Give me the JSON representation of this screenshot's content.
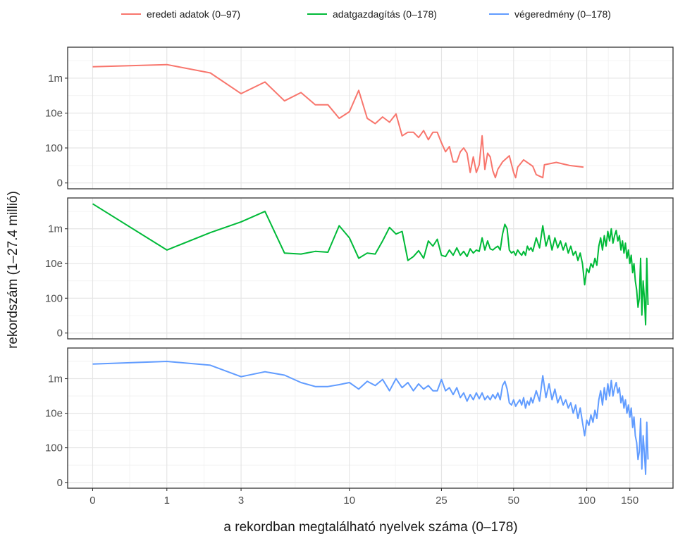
{
  "chart_data": {
    "type": "line",
    "xlabel": "a rekordban megtalálható nyelvek száma (0–178)",
    "ylabel": "rekordszám (1–27.4 millió)",
    "x_scale": "log1p",
    "y_scale": "log1p",
    "x_ticks": [
      {
        "value": 0,
        "label": "0"
      },
      {
        "value": 1,
        "label": "1"
      },
      {
        "value": 3,
        "label": "3"
      },
      {
        "value": 10,
        "label": "10"
      },
      {
        "value": 25,
        "label": "25"
      },
      {
        "value": 50,
        "label": "50"
      },
      {
        "value": 100,
        "label": "100"
      },
      {
        "value": 150,
        "label": "150"
      }
    ],
    "y_ticks": [
      {
        "value": 0,
        "label": "0"
      },
      {
        "value": 100,
        "label": "100"
      },
      {
        "value": 10000,
        "label": "10e"
      },
      {
        "value": 1000000,
        "label": "1m"
      }
    ],
    "xlim": [
      0,
      178
    ],
    "ylim": [
      0,
      27400000
    ],
    "legend_position": "top",
    "grid": true,
    "series": [
      {
        "name": "eredeti adatok (0–97)",
        "color": "#F8766D",
        "points": [
          [
            0,
            4500000
          ],
          [
            1,
            6000000
          ],
          [
            2,
            2000000
          ],
          [
            3,
            130000
          ],
          [
            4,
            600000
          ],
          [
            5,
            50000
          ],
          [
            6,
            150000
          ],
          [
            7,
            30000
          ],
          [
            8,
            30000
          ],
          [
            9,
            5000
          ],
          [
            10,
            12000
          ],
          [
            11,
            200000
          ],
          [
            12,
            5000
          ],
          [
            13,
            2500
          ],
          [
            14,
            6000
          ],
          [
            15,
            3000
          ],
          [
            16,
            9000
          ],
          [
            17,
            500
          ],
          [
            18,
            800
          ],
          [
            19,
            800
          ],
          [
            20,
            400
          ],
          [
            21,
            1000
          ],
          [
            22,
            300
          ],
          [
            23,
            800
          ],
          [
            24,
            800
          ],
          [
            25,
            200
          ],
          [
            26,
            60
          ],
          [
            27,
            120
          ],
          [
            28,
            15
          ],
          [
            29,
            15
          ],
          [
            30,
            60
          ],
          [
            31,
            100
          ],
          [
            32,
            50
          ],
          [
            33,
            3
          ],
          [
            34,
            30
          ],
          [
            35,
            3
          ],
          [
            36,
            10
          ],
          [
            37,
            500
          ],
          [
            38,
            5
          ],
          [
            39,
            50
          ],
          [
            40,
            30
          ],
          [
            41,
            4
          ],
          [
            42,
            1
          ],
          [
            43,
            5
          ],
          [
            45,
            15
          ],
          [
            48,
            35
          ],
          [
            50,
            3
          ],
          [
            51,
            1
          ],
          [
            52,
            7
          ],
          [
            55,
            20
          ],
          [
            60,
            8
          ],
          [
            62,
            2
          ],
          [
            66,
            1
          ],
          [
            67,
            10
          ],
          [
            75,
            14
          ],
          [
            85,
            9
          ],
          [
            97,
            7
          ]
        ]
      },
      {
        "name": "adatgazdagítás (0–178)",
        "color": "#00BA38",
        "points": [
          [
            0,
            27400000
          ],
          [
            1,
            60000
          ],
          [
            2,
            600000
          ],
          [
            3,
            2500000
          ],
          [
            4,
            10000000
          ],
          [
            5,
            40000
          ],
          [
            6,
            35000
          ],
          [
            7,
            50000
          ],
          [
            8,
            45000
          ],
          [
            9,
            1500000
          ],
          [
            10,
            300000
          ],
          [
            11,
            20000
          ],
          [
            12,
            40000
          ],
          [
            13,
            35000
          ],
          [
            14,
            200000
          ],
          [
            15,
            1200000
          ],
          [
            16,
            500000
          ],
          [
            17,
            700000
          ],
          [
            18,
            15000
          ],
          [
            19,
            25000
          ],
          [
            20,
            55000
          ],
          [
            21,
            20000
          ],
          [
            22,
            200000
          ],
          [
            23,
            100000
          ],
          [
            24,
            250000
          ],
          [
            25,
            30000
          ],
          [
            26,
            25000
          ],
          [
            27,
            60000
          ],
          [
            28,
            30000
          ],
          [
            29,
            80000
          ],
          [
            30,
            30000
          ],
          [
            31,
            50000
          ],
          [
            32,
            25000
          ],
          [
            33,
            70000
          ],
          [
            34,
            40000
          ],
          [
            35,
            60000
          ],
          [
            36,
            50000
          ],
          [
            37,
            300000
          ],
          [
            38,
            60000
          ],
          [
            39,
            200000
          ],
          [
            40,
            70000
          ],
          [
            41,
            60000
          ],
          [
            42,
            80000
          ],
          [
            43,
            100000
          ],
          [
            44,
            60000
          ],
          [
            45,
            500000
          ],
          [
            46,
            1800000
          ],
          [
            47,
            1000000
          ],
          [
            48,
            60000
          ],
          [
            49,
            40000
          ],
          [
            50,
            50000
          ],
          [
            51,
            30000
          ],
          [
            52,
            60000
          ],
          [
            53,
            40000
          ],
          [
            54,
            30000
          ],
          [
            55,
            50000
          ],
          [
            56,
            30000
          ],
          [
            57,
            100000
          ],
          [
            58,
            60000
          ],
          [
            59,
            80000
          ],
          [
            60,
            50000
          ],
          [
            62,
            300000
          ],
          [
            64,
            80000
          ],
          [
            66,
            1500000
          ],
          [
            68,
            100000
          ],
          [
            70,
            400000
          ],
          [
            72,
            60000
          ],
          [
            74,
            300000
          ],
          [
            76,
            80000
          ],
          [
            78,
            200000
          ],
          [
            80,
            60000
          ],
          [
            82,
            150000
          ],
          [
            84,
            40000
          ],
          [
            86,
            100000
          ],
          [
            88,
            30000
          ],
          [
            90,
            50000
          ],
          [
            92,
            15000
          ],
          [
            94,
            40000
          ],
          [
            96,
            10000
          ],
          [
            98,
            600
          ],
          [
            100,
            5000
          ],
          [
            102,
            3000
          ],
          [
            104,
            10000
          ],
          [
            106,
            6000
          ],
          [
            108,
            20000
          ],
          [
            110,
            8000
          ],
          [
            112,
            100000
          ],
          [
            114,
            300000
          ],
          [
            116,
            60000
          ],
          [
            118,
            400000
          ],
          [
            120,
            100000
          ],
          [
            122,
            700000
          ],
          [
            124,
            200000
          ],
          [
            126,
            1000000
          ],
          [
            128,
            150000
          ],
          [
            130,
            400000
          ],
          [
            132,
            800000
          ],
          [
            134,
            200000
          ],
          [
            136,
            400000
          ],
          [
            138,
            60000
          ],
          [
            140,
            200000
          ],
          [
            142,
            40000
          ],
          [
            144,
            150000
          ],
          [
            146,
            20000
          ],
          [
            148,
            60000
          ],
          [
            150,
            10000
          ],
          [
            152,
            30000
          ],
          [
            154,
            3000
          ],
          [
            156,
            10000
          ],
          [
            158,
            1000
          ],
          [
            160,
            300
          ],
          [
            162,
            30
          ],
          [
            164,
            100
          ],
          [
            166,
            20000
          ],
          [
            168,
            10
          ],
          [
            170,
            1000
          ],
          [
            172,
            100
          ],
          [
            174,
            2
          ],
          [
            176,
            20000
          ],
          [
            178,
            40
          ]
        ]
      },
      {
        "name": "végeredmény (0–178)",
        "color": "#619CFF",
        "points": [
          [
            0,
            7000000
          ],
          [
            1,
            10000000
          ],
          [
            2,
            6000000
          ],
          [
            3,
            1300000
          ],
          [
            4,
            2500000
          ],
          [
            5,
            1600000
          ],
          [
            6,
            600000
          ],
          [
            7,
            350000
          ],
          [
            8,
            350000
          ],
          [
            9,
            450000
          ],
          [
            10,
            600000
          ],
          [
            11,
            250000
          ],
          [
            12,
            700000
          ],
          [
            13,
            400000
          ],
          [
            14,
            900000
          ],
          [
            15,
            200000
          ],
          [
            16,
            1000000
          ],
          [
            17,
            300000
          ],
          [
            18,
            600000
          ],
          [
            19,
            200000
          ],
          [
            20,
            500000
          ],
          [
            21,
            250000
          ],
          [
            22,
            400000
          ],
          [
            23,
            200000
          ],
          [
            24,
            200000
          ],
          [
            25,
            900000
          ],
          [
            26,
            200000
          ],
          [
            27,
            300000
          ],
          [
            28,
            120000
          ],
          [
            29,
            300000
          ],
          [
            30,
            80000
          ],
          [
            31,
            150000
          ],
          [
            32,
            50000
          ],
          [
            33,
            120000
          ],
          [
            34,
            60000
          ],
          [
            35,
            150000
          ],
          [
            36,
            70000
          ],
          [
            37,
            150000
          ],
          [
            38,
            60000
          ],
          [
            39,
            100000
          ],
          [
            40,
            60000
          ],
          [
            41,
            120000
          ],
          [
            42,
            70000
          ],
          [
            43,
            150000
          ],
          [
            44,
            60000
          ],
          [
            45,
            400000
          ],
          [
            46,
            700000
          ],
          [
            47,
            250000
          ],
          [
            48,
            40000
          ],
          [
            49,
            30000
          ],
          [
            50,
            60000
          ],
          [
            51,
            25000
          ],
          [
            52,
            40000
          ],
          [
            53,
            60000
          ],
          [
            54,
            30000
          ],
          [
            55,
            80000
          ],
          [
            56,
            20000
          ],
          [
            57,
            50000
          ],
          [
            58,
            30000
          ],
          [
            59,
            80000
          ],
          [
            60,
            40000
          ],
          [
            62,
            200000
          ],
          [
            64,
            50000
          ],
          [
            66,
            1500000
          ],
          [
            68,
            80000
          ],
          [
            70,
            500000
          ],
          [
            72,
            60000
          ],
          [
            74,
            250000
          ],
          [
            76,
            40000
          ],
          [
            78,
            100000
          ],
          [
            80,
            30000
          ],
          [
            82,
            60000
          ],
          [
            84,
            20000
          ],
          [
            86,
            40000
          ],
          [
            88,
            10000
          ],
          [
            90,
            30000
          ],
          [
            92,
            5000
          ],
          [
            94,
            20000
          ],
          [
            96,
            3000
          ],
          [
            98,
            500
          ],
          [
            100,
            4000
          ],
          [
            102,
            2000
          ],
          [
            104,
            8000
          ],
          [
            106,
            3000
          ],
          [
            108,
            15000
          ],
          [
            110,
            5000
          ],
          [
            112,
            60000
          ],
          [
            114,
            200000
          ],
          [
            116,
            30000
          ],
          [
            118,
            300000
          ],
          [
            120,
            60000
          ],
          [
            122,
            500000
          ],
          [
            124,
            100000
          ],
          [
            126,
            800000
          ],
          [
            128,
            100000
          ],
          [
            130,
            300000
          ],
          [
            132,
            600000
          ],
          [
            134,
            150000
          ],
          [
            136,
            300000
          ],
          [
            138,
            40000
          ],
          [
            140,
            100000
          ],
          [
            142,
            20000
          ],
          [
            144,
            60000
          ],
          [
            146,
            10000
          ],
          [
            148,
            30000
          ],
          [
            150,
            6000
          ],
          [
            152,
            20000
          ],
          [
            154,
            1500
          ],
          [
            156,
            6000
          ],
          [
            158,
            500
          ],
          [
            160,
            200
          ],
          [
            162,
            20
          ],
          [
            164,
            60
          ],
          [
            166,
            5000
          ],
          [
            168,
            5
          ],
          [
            170,
            500
          ],
          [
            172,
            50
          ],
          [
            174,
            2
          ],
          [
            176,
            3000
          ],
          [
            178,
            20
          ]
        ]
      }
    ]
  }
}
